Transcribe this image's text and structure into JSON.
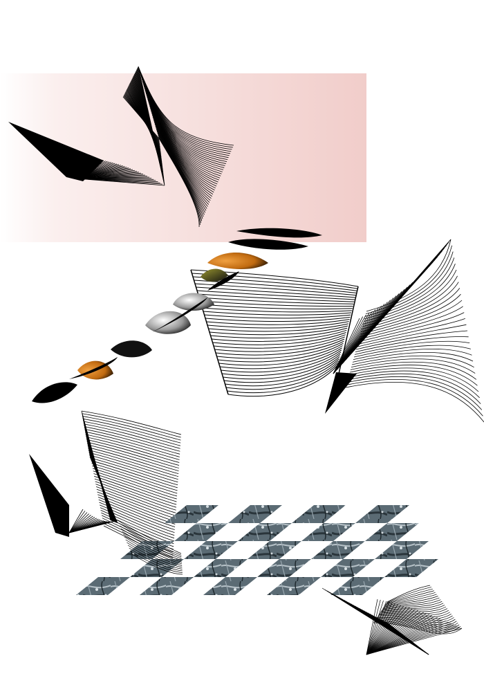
{
  "canvas": {
    "background": "#ffffff",
    "panel_gradient_from": "#fdf6f5",
    "panel_gradient_to": "#f2cfcc",
    "ink": "#000000",
    "accent_orange": "#d9801a",
    "accent_olive": "#6b6a1e",
    "marble_dark": "#3b4a52",
    "marble_light": "#8c9aa3"
  },
  "elements": [
    "pink-gradient-panel",
    "ribbon-surface-top-left",
    "dotted-blob-ribbon",
    "line-sheet-center",
    "line-cone-right",
    "ribbon-surface-bottom-left",
    "marble-checkerboard",
    "ribbon-surface-bottom-right"
  ]
}
